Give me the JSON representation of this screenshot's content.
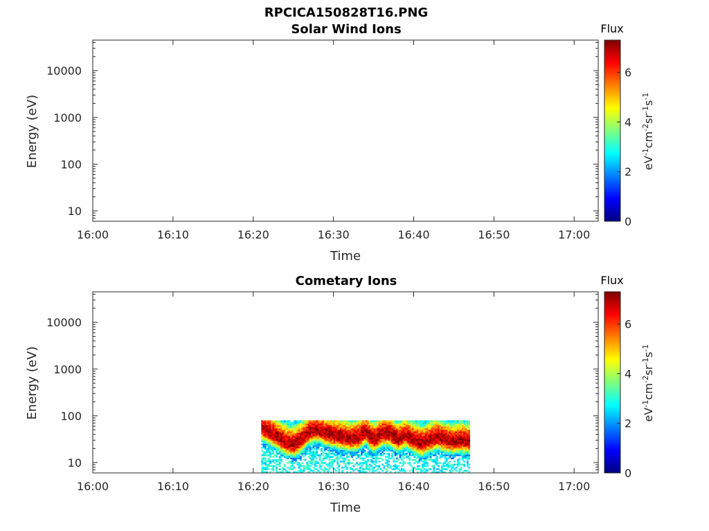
{
  "figure_title": "RPCICA150828T16.PNG",
  "colormap": [
    "#00007f",
    "#0000ff",
    "#007fff",
    "#00ffff",
    "#7fff7f",
    "#ffff00",
    "#ff7f00",
    "#ff0000",
    "#7f0000"
  ],
  "chart_data": [
    {
      "type": "heatmap",
      "title": "Solar Wind Ions",
      "xlabel": "Time",
      "ylabel": "Energy (eV)",
      "x_ticks": [
        "16:00",
        "16:10",
        "16:20",
        "16:30",
        "16:40",
        "16:50",
        "17:00"
      ],
      "xlim": [
        "16:00",
        "17:03"
      ],
      "y_scale": "log",
      "ylim": [
        6,
        45000
      ],
      "y_ticks": [
        10,
        100,
        1000,
        10000
      ],
      "y_tick_labels": [
        "10",
        "100",
        "1000",
        "10000"
      ],
      "colorbar": {
        "title": "Flux",
        "label": "eV-1cm-2sr-1s-1",
        "range": [
          0,
          7.3
        ],
        "ticks": [
          0,
          2,
          4,
          6
        ],
        "tick_labels": [
          "0",
          "2",
          "4",
          "6"
        ]
      },
      "data": []
    },
    {
      "type": "heatmap",
      "title": "Cometary Ions",
      "xlabel": "Time",
      "ylabel": "Energy (eV)",
      "x_ticks": [
        "16:00",
        "16:10",
        "16:20",
        "16:30",
        "16:40",
        "16:50",
        "17:00"
      ],
      "xlim": [
        "16:00",
        "17:03"
      ],
      "y_scale": "log",
      "ylim": [
        6,
        45000
      ],
      "y_ticks": [
        10,
        100,
        1000,
        10000
      ],
      "y_tick_labels": [
        "10",
        "100",
        "1000",
        "10000"
      ],
      "colorbar": {
        "title": "Flux",
        "label": "eV-1cm-2sr-1s-1",
        "range": [
          0,
          7.3
        ],
        "ticks": [
          0,
          2,
          4,
          6
        ],
        "tick_labels": [
          "0",
          "2",
          "4",
          "6"
        ]
      },
      "data_time_range": [
        "16:21",
        "16:47"
      ],
      "data_energy_range": [
        6,
        80
      ],
      "peak_energy_trace": [
        {
          "time": "16:21",
          "energy": 55
        },
        {
          "time": "16:22",
          "energy": 45
        },
        {
          "time": "16:23",
          "energy": 35
        },
        {
          "time": "16:24",
          "energy": 27
        },
        {
          "time": "16:25",
          "energy": 24
        },
        {
          "time": "16:26",
          "energy": 30
        },
        {
          "time": "16:27",
          "energy": 45
        },
        {
          "time": "16:28",
          "energy": 50
        },
        {
          "time": "16:29",
          "energy": 42
        },
        {
          "time": "16:30",
          "energy": 38
        },
        {
          "time": "16:31",
          "energy": 35
        },
        {
          "time": "16:32",
          "energy": 32
        },
        {
          "time": "16:33",
          "energy": 33
        },
        {
          "time": "16:34",
          "energy": 45
        },
        {
          "time": "16:35",
          "energy": 30
        },
        {
          "time": "16:36",
          "energy": 40
        },
        {
          "time": "16:37",
          "energy": 42
        },
        {
          "time": "16:38",
          "energy": 30
        },
        {
          "time": "16:39",
          "energy": 38
        },
        {
          "time": "16:40",
          "energy": 30
        },
        {
          "time": "16:41",
          "energy": 25
        },
        {
          "time": "16:42",
          "energy": 30
        },
        {
          "time": "16:43",
          "energy": 35
        },
        {
          "time": "16:44",
          "energy": 30
        },
        {
          "time": "16:45",
          "energy": 28
        },
        {
          "time": "16:46",
          "energy": 30
        },
        {
          "time": "16:47",
          "energy": 28
        }
      ],
      "peak_flux": 7
    }
  ]
}
